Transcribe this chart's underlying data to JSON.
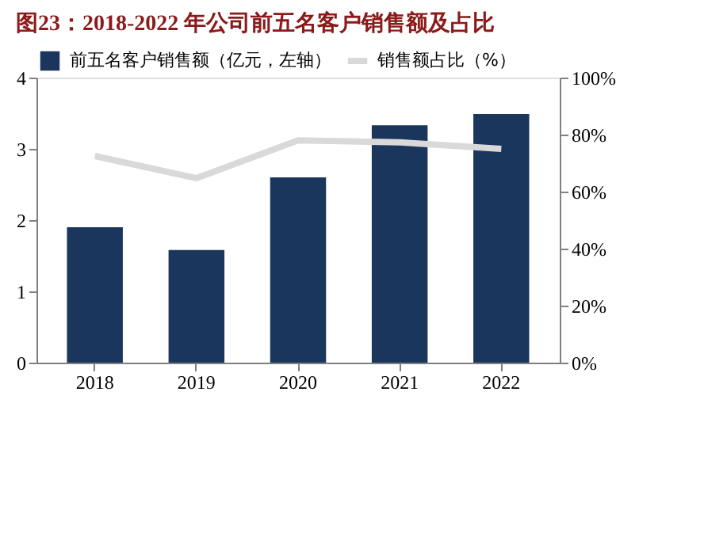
{
  "chart_data": {
    "type": "bar",
    "title": "图23：2018-2022 年公司前五名客户销售额及占比",
    "categories": [
      "2018",
      "2019",
      "2020",
      "2021",
      "2022"
    ],
    "series": [
      {
        "name": "前五名客户销售额（亿元，左轴）",
        "color": "#1b365d",
        "values": [
          1.9,
          1.58,
          2.6,
          3.33,
          3.49
        ]
      },
      {
        "name": "销售额占比（%）",
        "color": "#d9d9d9",
        "type": "line",
        "axis": "y2",
        "values": [
          72.5,
          64.7,
          78,
          77.3,
          75
        ]
      }
    ],
    "ylim": [
      0,
      4
    ],
    "yticks": [
      0,
      1,
      2,
      3,
      4
    ],
    "y2lim": [
      0,
      100
    ],
    "y2ticks": [
      {
        "value": 0,
        "label": "0%"
      },
      {
        "value": 20,
        "label": "20%"
      },
      {
        "value": 40,
        "label": "40%"
      },
      {
        "value": 60,
        "label": "60%"
      },
      {
        "value": 80,
        "label": "80%"
      },
      {
        "value": 100,
        "label": "100%"
      }
    ],
    "grid": false,
    "legend": "top"
  }
}
